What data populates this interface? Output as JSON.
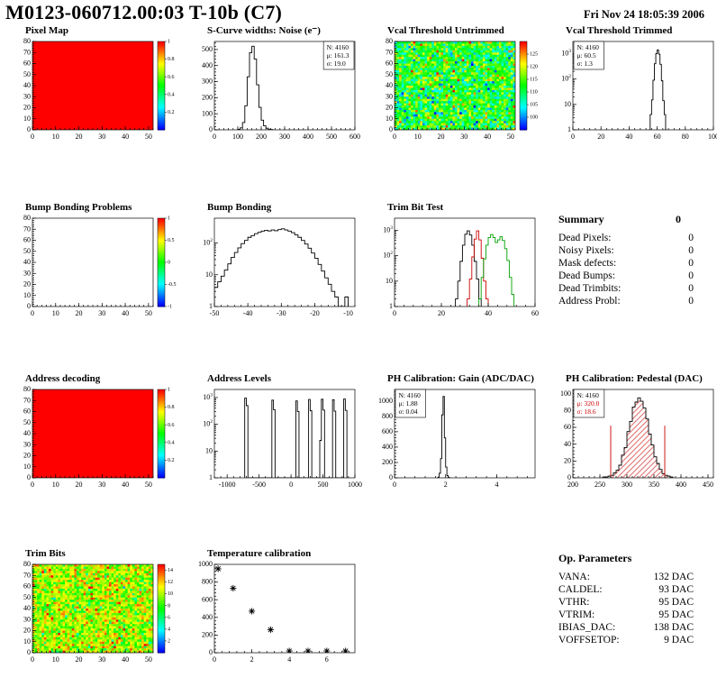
{
  "header": {
    "title": "M0123-060712.00:03 T-10b (C7)",
    "date": "Fri Nov 24 18:05:39 2006"
  },
  "summary": {
    "title": "Summary",
    "total": "0",
    "rows": [
      {
        "label": "Dead Pixels:",
        "value": "0"
      },
      {
        "label": "Noisy Pixels:",
        "value": "0"
      },
      {
        "label": "Mask defects:",
        "value": "0"
      },
      {
        "label": "Dead Bumps:",
        "value": "0"
      },
      {
        "label": "Dead Trimbits:",
        "value": "0"
      },
      {
        "label": "Address Probl:",
        "value": "0"
      }
    ]
  },
  "op_params": {
    "title": "Op. Parameters",
    "rows": [
      {
        "label": "VANA:",
        "value": "132 DAC"
      },
      {
        "label": "CALDEL:",
        "value": "93 DAC"
      },
      {
        "label": "VTHR:",
        "value": "95 DAC"
      },
      {
        "label": "VTRIM:",
        "value": "95 DAC"
      },
      {
        "label": "IBIAS_DAC:",
        "value": "138 DAC"
      },
      {
        "label": "VOFFSETOP:",
        "value": "9 DAC"
      }
    ]
  },
  "chart_data": [
    {
      "id": "pixel-map",
      "title": "Pixel Map",
      "type": "heatmap",
      "fill": "uniform",
      "value": 1,
      "x": {
        "min": 0,
        "max": 52,
        "ticks": [
          0,
          10,
          20,
          30,
          40,
          50
        ]
      },
      "y": {
        "min": 0,
        "max": 80,
        "ticks": [
          0,
          10,
          20,
          30,
          40,
          50,
          60,
          70,
          80
        ]
      },
      "z": {
        "min": 0,
        "max": 1,
        "ticks": [
          0.2,
          0.4,
          0.6,
          0.8,
          1
        ]
      }
    },
    {
      "id": "scurve-noise",
      "title": "S-Curve widths: Noise (e⁻)",
      "type": "histogram",
      "x": {
        "min": 0,
        "max": 600,
        "ticks": [
          0,
          100,
          200,
          300,
          400,
          500,
          600
        ]
      },
      "y": {
        "min": 0,
        "max": 550,
        "ticks": [
          0,
          100,
          200,
          300,
          400,
          500
        ]
      },
      "binw": 10,
      "bins": [
        [
          100,
          3
        ],
        [
          110,
          12
        ],
        [
          120,
          45
        ],
        [
          130,
          150
        ],
        [
          140,
          330
        ],
        [
          150,
          480
        ],
        [
          160,
          520
        ],
        [
          170,
          440
        ],
        [
          180,
          280
        ],
        [
          190,
          140
        ],
        [
          200,
          60
        ],
        [
          210,
          25
        ],
        [
          220,
          10
        ],
        [
          230,
          4
        ],
        [
          240,
          2
        ]
      ],
      "stats": {
        "pos": "tr",
        "lines": [
          {
            "t": "N: 4160"
          },
          {
            "t": "μ: 161.3"
          },
          {
            "t": "σ: 19.0"
          }
        ]
      }
    },
    {
      "id": "vcal-threshold-untrimmed",
      "title": "Vcal Threshold Untrimmed",
      "type": "heatmap",
      "fill": "noise",
      "mean": 112,
      "sd": 6,
      "x": {
        "min": 0,
        "max": 52,
        "ticks": [
          0,
          10,
          20,
          30,
          40,
          50
        ]
      },
      "y": {
        "min": 0,
        "max": 80,
        "ticks": [
          0,
          10,
          20,
          30,
          40,
          50,
          60,
          70,
          80
        ]
      },
      "z": {
        "min": 95,
        "max": 130,
        "ticks": [
          100,
          105,
          110,
          115,
          120,
          125
        ]
      }
    },
    {
      "id": "vcal-threshold-trimmed",
      "title": "Vcal Threshold Trimmed",
      "type": "histogram",
      "ylog": true,
      "x": {
        "min": 0,
        "max": 100,
        "ticks": [
          0,
          20,
          40,
          60,
          80,
          100
        ]
      },
      "y": {
        "min": 1,
        "max": 3000
      },
      "binw": 1,
      "bins": [
        [
          54,
          1
        ],
        [
          55,
          4
        ],
        [
          56,
          15
        ],
        [
          57,
          90
        ],
        [
          58,
          400
        ],
        [
          59,
          1000
        ],
        [
          60,
          1400
        ],
        [
          61,
          950
        ],
        [
          62,
          380
        ],
        [
          63,
          85
        ],
        [
          64,
          14
        ],
        [
          65,
          4
        ],
        [
          66,
          1
        ]
      ],
      "stats": {
        "pos": "tl",
        "lines": [
          {
            "t": "N: 4160"
          },
          {
            "t": "μ: 60.5"
          },
          {
            "t": "σ: 1.3"
          }
        ]
      }
    },
    {
      "id": "bump-bonding-problems",
      "title": "Bump Bonding Problems",
      "type": "heatmap",
      "fill": "none",
      "x": {
        "min": 0,
        "max": 52,
        "ticks": [
          0,
          10,
          20,
          30,
          40,
          50
        ]
      },
      "y": {
        "min": 0,
        "max": 80,
        "ticks": [
          0,
          10,
          20,
          30,
          40,
          50,
          60,
          70,
          80
        ]
      },
      "z": {
        "min": -1,
        "max": 1,
        "ticks": [
          -1,
          -0.5,
          0,
          0.5,
          1
        ]
      }
    },
    {
      "id": "bump-bonding",
      "title": "Bump Bonding",
      "type": "histogram",
      "ylog": true,
      "x": {
        "min": -50,
        "max": -8,
        "ticks": [
          -50,
          -40,
          -30,
          -20,
          -10
        ]
      },
      "y": {
        "min": 1,
        "max": 600
      },
      "binw": 1,
      "bins": [
        [
          -50,
          4
        ],
        [
          -49,
          6
        ],
        [
          -48,
          9
        ],
        [
          -47,
          14
        ],
        [
          -46,
          22
        ],
        [
          -45,
          35
        ],
        [
          -44,
          50
        ],
        [
          -43,
          70
        ],
        [
          -42,
          95
        ],
        [
          -41,
          120
        ],
        [
          -40,
          150
        ],
        [
          -39,
          170
        ],
        [
          -38,
          195
        ],
        [
          -37,
          215
        ],
        [
          -36,
          235
        ],
        [
          -35,
          250
        ],
        [
          -34,
          238
        ],
        [
          -33,
          255
        ],
        [
          -32,
          242
        ],
        [
          -31,
          262
        ],
        [
          -30,
          278
        ],
        [
          -29,
          255
        ],
        [
          -28,
          235
        ],
        [
          -27,
          210
        ],
        [
          -26,
          180
        ],
        [
          -25,
          150
        ],
        [
          -24,
          120
        ],
        [
          -23,
          92
        ],
        [
          -22,
          68
        ],
        [
          -21,
          48
        ],
        [
          -20,
          33
        ],
        [
          -19,
          21
        ],
        [
          -18,
          13
        ],
        [
          -17,
          8
        ],
        [
          -16,
          5
        ],
        [
          -15,
          3
        ],
        [
          -14,
          2
        ],
        [
          -13,
          1
        ],
        [
          -11,
          2
        ]
      ]
    },
    {
      "id": "trim-bit-test",
      "title": "Trim Bit Test",
      "type": "histogram",
      "ylog": true,
      "multi": true,
      "x": {
        "min": 0,
        "max": 60,
        "ticks": [
          0,
          20,
          40,
          60
        ]
      },
      "y": {
        "min": 1,
        "max": 3000
      },
      "series": [
        {
          "name": "trim-bits-black",
          "color": "#000000",
          "binw": 1,
          "bins": [
            [
              26,
              2
            ],
            [
              27,
              10
            ],
            [
              28,
              60
            ],
            [
              29,
              260
            ],
            [
              30,
              700
            ],
            [
              31,
              950
            ],
            [
              32,
              650
            ],
            [
              33,
              260
            ],
            [
              34,
              60
            ],
            [
              35,
              12
            ],
            [
              36,
              2
            ]
          ]
        },
        {
          "name": "trim-bits-red",
          "color": "#cc0000",
          "binw": 1,
          "bins": [
            [
              31,
              2
            ],
            [
              32,
              12
            ],
            [
              33,
              90
            ],
            [
              34,
              450
            ],
            [
              35,
              950
            ],
            [
              36,
              420
            ],
            [
              37,
              80
            ],
            [
              38,
              10
            ],
            [
              39,
              2
            ]
          ]
        },
        {
          "name": "trim-bits-green",
          "color": "#00a000",
          "binw": 1,
          "bins": [
            [
              36,
              2
            ],
            [
              37,
              14
            ],
            [
              38,
              75
            ],
            [
              39,
              260
            ],
            [
              40,
              520
            ],
            [
              41,
              680
            ],
            [
              42,
              520
            ],
            [
              43,
              330
            ],
            [
              44,
              420
            ],
            [
              45,
              560
            ],
            [
              46,
              400
            ],
            [
              47,
              190
            ],
            [
              48,
              65
            ],
            [
              49,
              14
            ],
            [
              50,
              3
            ]
          ]
        }
      ]
    },
    {
      "id": "address-decoding",
      "title": "Address decoding",
      "type": "heatmap",
      "fill": "uniform",
      "value": 1,
      "x": {
        "min": 0,
        "max": 52,
        "ticks": [
          0,
          10,
          20,
          30,
          40,
          50
        ]
      },
      "y": {
        "min": 0,
        "max": 80,
        "ticks": [
          0,
          10,
          20,
          30,
          40,
          50,
          60,
          70,
          80
        ]
      },
      "z": {
        "min": 0,
        "max": 1,
        "ticks": [
          0.2,
          0.4,
          0.6,
          0.8,
          1
        ]
      }
    },
    {
      "id": "address-levels",
      "title": "Address Levels",
      "type": "histogram",
      "ylog": true,
      "x": {
        "min": -1200,
        "max": 1000,
        "ticks": [
          -1000,
          -500,
          0,
          500,
          1000
        ]
      },
      "y": {
        "min": 1,
        "max": 2000
      },
      "binw": 25,
      "bins": [
        [
          -725,
          950
        ],
        [
          -700,
          500
        ],
        [
          -300,
          800
        ],
        [
          -275,
          350
        ],
        [
          75,
          750
        ],
        [
          100,
          300
        ],
        [
          275,
          850
        ],
        [
          300,
          320
        ],
        [
          450,
          25
        ],
        [
          475,
          860
        ],
        [
          500,
          340
        ],
        [
          650,
          820
        ],
        [
          675,
          310
        ],
        [
          825,
          880
        ],
        [
          850,
          330
        ]
      ]
    },
    {
      "id": "ph-calibration-gain",
      "title": "PH Calibration: Gain (ADC/DAC)",
      "type": "histogram",
      "x": {
        "min": 0,
        "max": 5.5,
        "ticks": [
          0,
          2,
          4
        ]
      },
      "y": {
        "min": 0,
        "max": 1150,
        "ticks": [
          0,
          200,
          400,
          600,
          800,
          1000
        ]
      },
      "binw": 0.05,
      "bins": [
        [
          1.7,
          10
        ],
        [
          1.75,
          60
        ],
        [
          1.8,
          250
        ],
        [
          1.85,
          820
        ],
        [
          1.9,
          1060
        ],
        [
          1.95,
          520
        ],
        [
          2.0,
          140
        ],
        [
          2.05,
          30
        ],
        [
          2.1,
          8
        ]
      ],
      "stats": {
        "pos": "tl",
        "lines": [
          {
            "t": "N: 4160"
          },
          {
            "t": "μ: 1.88"
          },
          {
            "t": "σ: 0.04"
          }
        ]
      }
    },
    {
      "id": "ph-calibration-pedestal",
      "title": "PH Calibration: Pedestal (DAC)",
      "type": "histogram",
      "fillstyle": "hatch",
      "fillcolor": "#cc2222",
      "x": {
        "min": 200,
        "max": 460,
        "ticks": [
          200,
          250,
          300,
          350,
          400,
          450
        ]
      },
      "y": {
        "min": 0,
        "max": 105,
        "ticks": [
          0,
          20,
          40,
          60,
          80,
          100
        ]
      },
      "binw": 5,
      "bins": [
        [
          255,
          1
        ],
        [
          260,
          1
        ],
        [
          265,
          2
        ],
        [
          270,
          3
        ],
        [
          275,
          6
        ],
        [
          280,
          9
        ],
        [
          285,
          15
        ],
        [
          290,
          27
        ],
        [
          295,
          36
        ],
        [
          300,
          55
        ],
        [
          305,
          67
        ],
        [
          310,
          84
        ],
        [
          315,
          90
        ],
        [
          320,
          95
        ],
        [
          325,
          91
        ],
        [
          330,
          83
        ],
        [
          335,
          70
        ],
        [
          340,
          52
        ],
        [
          345,
          39
        ],
        [
          350,
          25
        ],
        [
          355,
          17
        ],
        [
          360,
          10
        ],
        [
          365,
          5
        ],
        [
          370,
          3
        ],
        [
          375,
          2
        ],
        [
          380,
          1
        ]
      ],
      "cuts": [
        270,
        370
      ],
      "stats": {
        "pos": "tl",
        "lines": [
          {
            "t": "N: 4160"
          },
          {
            "t": "μ: 320.0",
            "c": "#cc0000"
          },
          {
            "t": "σ: 18.6",
            "c": "#cc0000"
          }
        ]
      }
    },
    {
      "id": "trim-bits",
      "title": "Trim Bits",
      "type": "heatmap",
      "fill": "noise",
      "mean": 10,
      "sd": 2,
      "x": {
        "min": 0,
        "max": 52,
        "ticks": [
          0,
          10,
          20,
          30,
          40,
          50
        ]
      },
      "y": {
        "min": 0,
        "max": 80,
        "ticks": [
          0,
          10,
          20,
          30,
          40,
          50,
          60,
          70,
          80
        ]
      },
      "z": {
        "min": 0,
        "max": 15,
        "ticks": [
          2,
          4,
          6,
          8,
          10,
          12,
          14
        ]
      }
    },
    {
      "id": "temperature-calibration",
      "title": "Temperature calibration",
      "type": "scatter",
      "marker": "asterisk",
      "x": {
        "min": 0,
        "max": 7.5,
        "ticks": [
          0,
          2,
          4,
          6
        ]
      },
      "y": {
        "min": 0,
        "max": 1000,
        "ticks": [
          0,
          200,
          400,
          600,
          800,
          1000
        ]
      },
      "points": [
        [
          0.2,
          950
        ],
        [
          1,
          730
        ],
        [
          2,
          470
        ],
        [
          3,
          260
        ],
        [
          4,
          20
        ],
        [
          5,
          20
        ],
        [
          6,
          20
        ],
        [
          7,
          20
        ]
      ]
    }
  ]
}
